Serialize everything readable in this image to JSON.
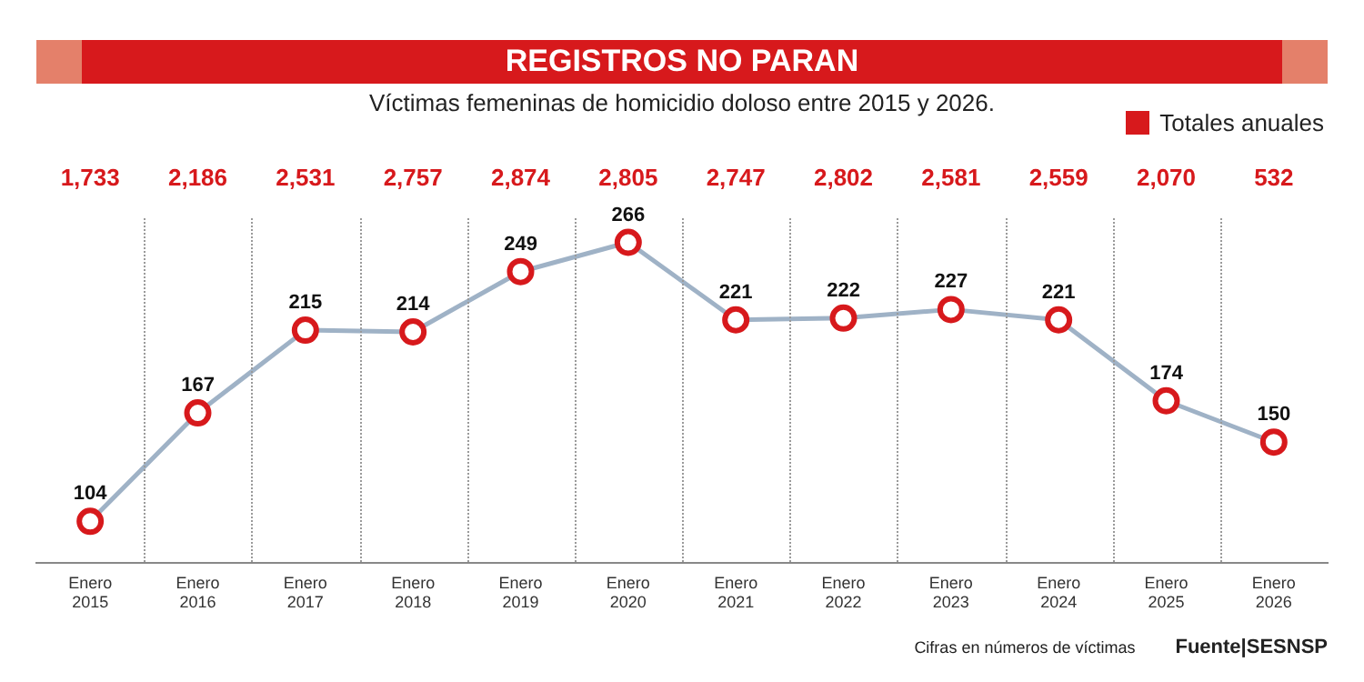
{
  "chart_data": {
    "type": "line",
    "title": "REGISTROS NO PARAN",
    "subtitle": "Víctimas femeninas de homicidio doloso entre 2015 y 2026.",
    "categories": [
      "Enero 2015",
      "Enero 2016",
      "Enero 2017",
      "Enero 2018",
      "Enero 2019",
      "Enero 2020",
      "Enero 2021",
      "Enero 2022",
      "Enero 2023",
      "Enero 2024",
      "Enero 2025",
      "Enero 2026"
    ],
    "series": [
      {
        "color": "#9fb2c6",
        "colors": [
          "#d7191c",
          "#d7191c",
          "#d7191c",
          "#d7191c",
          "#d7191c",
          "#d7191c",
          "#d7191c",
          "#d7191c",
          "#d7191c",
          "#d7191c",
          "#d7191c",
          "#d7191c"
        ],
        "values": [
          104,
          167,
          215,
          214,
          249,
          266,
          221,
          222,
          227,
          221,
          174,
          150
        ]
      }
    ],
    "data_labels": true,
    "marker": "circle",
    "legend_title": "Totales anuales",
    "annotations": [
      "1,733",
      "2,186",
      "2,531",
      "2,757",
      "2,874",
      "2,805",
      "2,747",
      "2,802",
      "2,581",
      "2,559",
      "2,070",
      "532",
      "Cifras en números de víctimas",
      "Fuente|SESNSP"
    ]
  }
}
